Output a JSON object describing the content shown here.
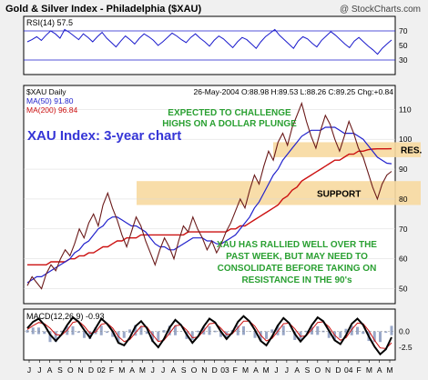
{
  "header": {
    "title": "Gold & Silver Index - Philadelphia ($XAU)",
    "watermark": "@ StockCharts.com"
  },
  "chart_data": [
    {
      "type": "line",
      "name": "rsi-panel",
      "label": "RSI(14) 57.5",
      "ylim": [
        10,
        90
      ],
      "yticks": [
        70,
        50,
        30
      ],
      "reference_lines": [
        70,
        30
      ],
      "values": [
        55,
        58,
        62,
        57,
        64,
        70,
        66,
        60,
        72,
        68,
        63,
        58,
        66,
        61,
        55,
        62,
        68,
        60,
        54,
        48,
        56,
        63,
        58,
        52,
        60,
        66,
        62,
        57,
        50,
        55,
        61,
        67,
        63,
        58,
        54,
        61,
        66,
        60,
        55,
        49,
        57,
        63,
        59,
        53,
        47,
        55,
        61,
        58,
        52,
        46,
        55,
        62,
        67,
        72,
        64,
        58,
        52,
        46,
        56,
        62,
        59,
        53,
        48,
        57,
        63,
        69,
        64,
        58,
        52,
        47,
        56,
        61,
        55,
        49,
        44,
        38,
        46,
        52,
        57.5
      ],
      "colors": {
        "line": "#1a1acc",
        "ref": "#1a1acc"
      }
    },
    {
      "type": "line",
      "name": "price-panel",
      "legend": [
        "$XAU Daily",
        "MA(50) 91.80",
        "MA(200) 96.84"
      ],
      "quote": "26-May-2004  O:88.98  H:89.53  L:88.26  C:89.25  Chg:+0.84",
      "ylim": [
        45,
        118
      ],
      "yticks": [
        110,
        100,
        90,
        80,
        70,
        60,
        50
      ],
      "price": [
        51,
        54,
        52,
        50,
        55,
        58,
        56,
        60,
        63,
        61,
        65,
        70,
        67,
        72,
        75,
        71,
        78,
        82,
        77,
        73,
        68,
        64,
        69,
        74,
        71,
        66,
        62,
        58,
        63,
        67,
        64,
        60,
        66,
        71,
        69,
        74,
        70,
        67,
        63,
        66,
        62,
        65,
        69,
        72,
        76,
        80,
        77,
        83,
        88,
        85,
        91,
        96,
        93,
        99,
        102,
        98,
        104,
        108,
        112,
        106,
        101,
        97,
        103,
        108,
        105,
        100,
        96,
        101,
        106,
        102,
        97,
        94,
        89,
        84,
        80,
        85,
        88,
        89.25
      ],
      "ma50": [
        52,
        53,
        54,
        54,
        55,
        56,
        57,
        58,
        59,
        60,
        62,
        63,
        65,
        66,
        68,
        70,
        71,
        73,
        74,
        74,
        73,
        72,
        71,
        71,
        70,
        69,
        67,
        65,
        64,
        64,
        63,
        63,
        64,
        65,
        66,
        67,
        67,
        67,
        66,
        66,
        65,
        65,
        66,
        67,
        68,
        70,
        72,
        74,
        77,
        79,
        82,
        85,
        88,
        90,
        93,
        95,
        97,
        99,
        101,
        102,
        103,
        103,
        103,
        104,
        104,
        104,
        103,
        102,
        102,
        102,
        101,
        100,
        98,
        96,
        94,
        93,
        92,
        91.8
      ],
      "ma200": [
        58,
        58,
        58,
        58,
        58,
        59,
        59,
        59,
        59,
        60,
        60,
        61,
        61,
        62,
        62,
        63,
        64,
        64,
        65,
        66,
        66,
        67,
        67,
        67,
        68,
        68,
        68,
        68,
        68,
        68,
        68,
        68,
        68,
        68,
        69,
        69,
        69,
        69,
        69,
        69,
        69,
        69,
        69,
        70,
        70,
        71,
        71,
        72,
        73,
        74,
        75,
        76,
        77,
        78,
        80,
        81,
        83,
        84,
        86,
        87,
        88,
        89,
        90,
        91,
        92,
        93,
        93,
        94,
        95,
        95,
        96,
        96,
        96.5,
        96.7,
        96.8,
        96.8,
        96.8,
        96.84
      ],
      "bands": [
        {
          "name": "resistance-band",
          "label": "RES.",
          "y0": 94,
          "y1": 99
        },
        {
          "name": "support-band",
          "label": "SUPPORT",
          "y0": 78,
          "y1": 86
        }
      ],
      "colors": {
        "price": "#6b1a1a",
        "ma50": "#2222cc",
        "ma200": "#cc1111",
        "band": "#f7d9a0"
      }
    },
    {
      "type": "line",
      "name": "macd-panel",
      "label": "MACD(12,26,9) -0.93",
      "ylim": [
        -4.5,
        3.5
      ],
      "yticks": [
        0.0,
        -2.5
      ],
      "macd": [
        0.5,
        1.5,
        2.0,
        1.0,
        -0.5,
        -1.5,
        -0.5,
        1.0,
        2.2,
        1.5,
        0.2,
        -1.0,
        0.5,
        2.0,
        1.2,
        0.0,
        -1.8,
        -2.2,
        -1.0,
        0.8,
        1.6,
        0.5,
        -1.5,
        -2.5,
        -1.2,
        0.6,
        1.8,
        1.0,
        -0.5,
        -1.8,
        -0.8,
        0.8,
        2.0,
        1.4,
        0.0,
        -1.2,
        -0.2,
        1.5,
        2.4,
        1.6,
        0.2,
        -1.5,
        -2.2,
        -0.8,
        0.9,
        2.1,
        1.3,
        -0.4,
        -1.6,
        -0.6,
        1.0,
        2.2,
        1.6,
        0.1,
        -1.4,
        -2.0,
        -0.6,
        1.2,
        2.0,
        1.0,
        -0.8,
        -2.4,
        -3.6,
        -2.8,
        -0.93
      ],
      "signal": [
        0.3,
        0.9,
        1.4,
        1.2,
        0.5,
        -0.5,
        -0.6,
        0.2,
        1.4,
        1.6,
        0.8,
        -0.3,
        -0.1,
        1.1,
        1.3,
        0.5,
        -0.8,
        -1.6,
        -1.3,
        -0.2,
        0.8,
        0.7,
        -0.5,
        -1.6,
        -1.4,
        -0.3,
        0.9,
        1.0,
        0.2,
        -1.0,
        -0.9,
        0.1,
        1.2,
        1.3,
        0.5,
        -0.5,
        -0.4,
        0.6,
        1.6,
        1.6,
        0.8,
        -0.6,
        -1.5,
        -1.1,
        0.0,
        1.2,
        1.3,
        0.4,
        -0.8,
        -0.7,
        0.3,
        1.4,
        1.5,
        0.7,
        -0.6,
        -1.4,
        -1.0,
        0.3,
        1.3,
        1.2,
        0.1,
        -1.4,
        -2.6,
        -2.7,
        -1.8
      ],
      "colors": {
        "macd": "#000000",
        "signal": "#cc1111",
        "hist": "#9aa8c8"
      }
    }
  ],
  "annotations": {
    "title": "XAU Index: 3-year chart",
    "expected": [
      "EXPECTED TO CHALLENGE",
      "HIGHS ON A DOLLAR PLUNGE"
    ],
    "rally": [
      "XAU HAS RALLIED WELL OVER THE",
      "PAST WEEK, BUT MAY NEED TO",
      "CONSOLIDATE BEFORE TAKING ON",
      "RESISTANCE IN THE 90's"
    ],
    "colors": {
      "title": "#3535d6",
      "note": "#2aa032"
    }
  },
  "x_axis": {
    "labels": [
      "J",
      "J",
      "A",
      "S",
      "O",
      "N",
      "D",
      "02",
      "F",
      "M",
      "A",
      "M",
      "J",
      "J",
      "A",
      "S",
      "O",
      "N",
      "D",
      "03",
      "F",
      "M",
      "A",
      "M",
      "J",
      "J",
      "A",
      "S",
      "O",
      "N",
      "D",
      "04",
      "F",
      "M",
      "A",
      "M"
    ]
  }
}
